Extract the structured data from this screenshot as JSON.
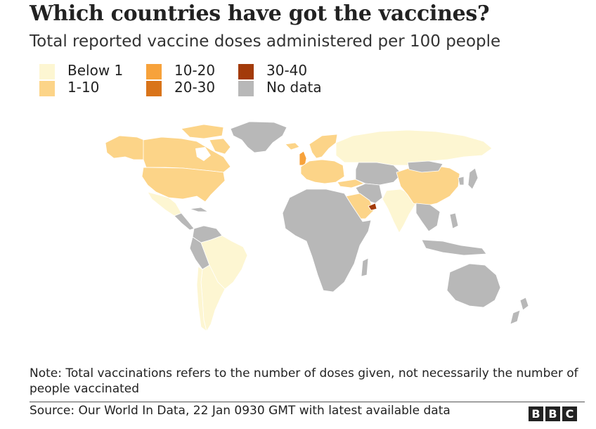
{
  "title": "Which countries have got the vaccines?",
  "subtitle": "Total reported vaccine doses administered per 100 people",
  "legend": [
    {
      "label": "Below 1",
      "color": "#fdf6d2"
    },
    {
      "label": "1-10",
      "color": "#fcd488"
    },
    {
      "label": "10-20",
      "color": "#f7a23b"
    },
    {
      "label": "20-30",
      "color": "#d9741a"
    },
    {
      "label": "30-40",
      "color": "#a33b0a"
    },
    {
      "label": "No data",
      "color": "#b8b8b8"
    }
  ],
  "note": "Note: Total vaccinations refers to the number of doses given, not necessarily the number of people vaccinated",
  "source": "Source: Our World In Data, 22 Jan 0930 GMT with latest available data",
  "logo": {
    "letters": [
      "B",
      "B",
      "C"
    ]
  },
  "colors": {
    "below1": "#fdf6d2",
    "r1_10": "#fcd488",
    "r10_20": "#f7a23b",
    "r20_30": "#d9741a",
    "r30_40": "#a33b0a",
    "nodata": "#b8b8b8",
    "border": "#ffffff"
  }
}
